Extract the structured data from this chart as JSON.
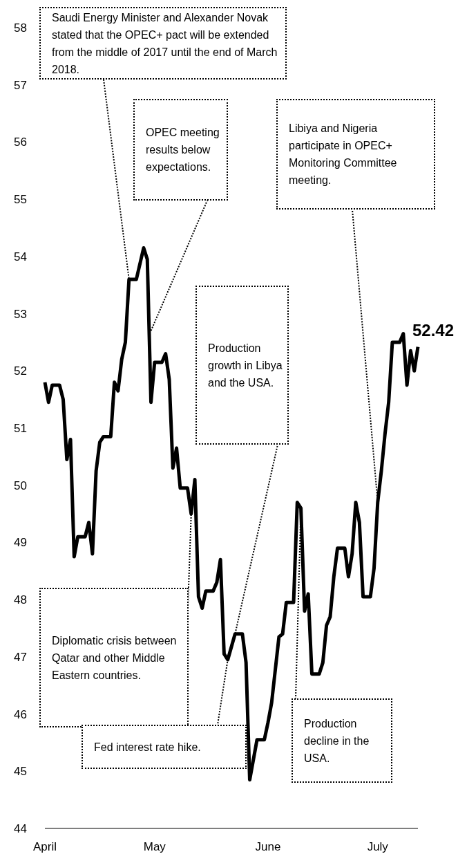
{
  "chart_data": {
    "type": "line",
    "color": "#000000",
    "line_style": "solid",
    "x": [
      "--04-01",
      "--04-02",
      "--04-03",
      "--04-05",
      "--04-06",
      "--04-07",
      "--04-08",
      "--04-09",
      "--04-10",
      "--04-12",
      "--04-13",
      "--04-14",
      "--04-15",
      "--04-16",
      "--04-17",
      "--04-19",
      "--04-20",
      "--04-21",
      "--04-22",
      "--04-23",
      "--04-24",
      "--04-26",
      "--04-28",
      "--04-29",
      "--04-30",
      "--05-01",
      "--05-03",
      "--05-04",
      "--05-05",
      "--05-06",
      "--05-07",
      "--05-08",
      "--05-10",
      "--05-11",
      "--05-12",
      "--05-13",
      "--05-14",
      "--05-15",
      "--05-17",
      "--05-18",
      "--05-19",
      "--05-20",
      "--05-21",
      "--05-23",
      "--05-25",
      "--05-26",
      "--05-27",
      "--05-29",
      "--05-31",
      "--06-01",
      "--06-02",
      "--06-04",
      "--06-05",
      "--06-06",
      "--06-08",
      "--06-09",
      "--06-10",
      "--06-11",
      "--06-12",
      "--06-13",
      "--06-15",
      "--06-16",
      "--06-17",
      "--06-18",
      "--06-19",
      "--06-20",
      "--06-22",
      "--06-23",
      "--06-24",
      "--06-25",
      "--06-26",
      "--06-27",
      "--06-29",
      "--06-30",
      "--07-01",
      "--07-02",
      "--07-03",
      "--07-04",
      "--07-05",
      "--07-07",
      "--07-08",
      "--07-09",
      "--07-10",
      "--07-11",
      "--07-12"
    ],
    "values": [
      51.8,
      51.45,
      51.75,
      51.75,
      51.5,
      50.45,
      50.8,
      48.75,
      49.1,
      49.1,
      49.35,
      48.8,
      50.25,
      50.75,
      50.85,
      50.85,
      51.8,
      51.65,
      52.2,
      52.5,
      53.6,
      53.6,
      54.15,
      53.95,
      51.45,
      52.15,
      52.15,
      52.3,
      51.85,
      50.3,
      50.65,
      49.95,
      49.95,
      49.5,
      50.1,
      48.05,
      47.85,
      48.15,
      48.15,
      48.3,
      48.7,
      47.05,
      46.95,
      47.4,
      47.4,
      46.9,
      44.85,
      45.55,
      45.55,
      45.85,
      46.2,
      47.35,
      47.4,
      47.95,
      47.95,
      49.7,
      49.6,
      47.8,
      48.1,
      46.7,
      46.7,
      46.9,
      47.55,
      47.7,
      48.4,
      48.9,
      48.9,
      48.4,
      48.8,
      49.7,
      49.35,
      48.05,
      48.05,
      48.55,
      49.7,
      50.25,
      50.9,
      51.45,
      52.5,
      52.5,
      52.65,
      51.75,
      52.35,
      52.0,
      52.42
    ],
    "xticks": [
      {
        "value": "--04-01",
        "label": "April"
      },
      {
        "value": "--05-01",
        "label": "May"
      },
      {
        "value": "--06-01",
        "label": "June"
      },
      {
        "value": "--07-01",
        "label": "July"
      }
    ],
    "xlim": [
      "--04-01",
      "--07-12"
    ],
    "ylim": [
      44,
      58
    ],
    "yticks": [
      44,
      45,
      46,
      47,
      48,
      49,
      50,
      51,
      52,
      53,
      54,
      55,
      56,
      57,
      58
    ],
    "annotations": [
      {
        "text": "Saudi Energy Minister and Alexander Novak stated that the OPEC+ pact will be extended from the middle of 2017 until the end of March 2018.",
        "x": "--04-24",
        "y": 53.6
      },
      {
        "text": "OPEC meeting results below expectations.",
        "x": "--04-30",
        "y": 52.7
      },
      {
        "text": "Libiya and Nigeria participate in OPEC+ Monitoring Committee meeting.",
        "x": "--07-01",
        "y": 49.7
      },
      {
        "text": "Production growth in Libya and the USA.",
        "x": "--05-23",
        "y": 47.4
      },
      {
        "text": "Diplomatic crisis between Qatar and other Middle Eastern countries.",
        "x": "--05-11",
        "y": 49.5
      },
      {
        "text": "Fed interest rate hike.",
        "x": "--05-21",
        "y": 46.95
      },
      {
        "text": "Production decline in the USA.",
        "x": "--06-10",
        "y": 49.6
      },
      {
        "text": "52.42",
        "x": "--07-12",
        "y": 52.42
      }
    ]
  }
}
